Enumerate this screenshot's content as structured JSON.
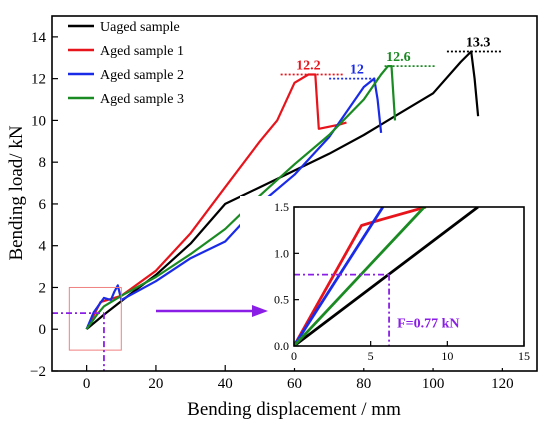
{
  "chart_data": [
    {
      "type": "line",
      "title": "",
      "xlabel": "Bending displacement / mm",
      "ylabel": "Bending load/ kN",
      "xlim": [
        -10,
        130
      ],
      "ylim": [
        -2,
        15
      ],
      "xticks": [
        0,
        20,
        40,
        60,
        80,
        100,
        120
      ],
      "yticks": [
        -2,
        0,
        2,
        4,
        6,
        8,
        10,
        12,
        14
      ],
      "xtick_labels": [
        "0",
        "20",
        "40",
        "60",
        "80",
        "100",
        "120"
      ],
      "ytick_labels": [
        "−2",
        "0",
        "2",
        "4",
        "6",
        "8",
        "10",
        "12",
        "14"
      ],
      "legend_position": "top-left",
      "series": [
        {
          "name": "Uaged sample",
          "color": "#000000",
          "x": [
            0,
            5,
            12,
            20,
            30,
            40,
            50,
            60,
            70,
            80,
            90,
            100,
            108,
            111,
            112,
            113
          ],
          "y": [
            0,
            0.7,
            1.6,
            2.6,
            4.1,
            6.0,
            6.8,
            7.6,
            8.4,
            9.3,
            10.3,
            11.3,
            12.8,
            13.3,
            12.0,
            10.2
          ]
        },
        {
          "name": "Aged sample 1",
          "color": "#e8141c",
          "x": [
            0,
            4,
            10,
            20,
            30,
            40,
            50,
            55,
            60,
            64,
            66,
            67,
            73,
            75
          ],
          "y": [
            0,
            1.3,
            1.6,
            2.8,
            4.6,
            6.8,
            9.0,
            10.0,
            11.8,
            12.2,
            12.2,
            9.6,
            9.8,
            9.9
          ]
        },
        {
          "name": "Aged sample 2",
          "color": "#1a2be8",
          "x": [
            0,
            2,
            5,
            7,
            8,
            9,
            10,
            20,
            30,
            40,
            50,
            60,
            70,
            80,
            83,
            84,
            85
          ],
          "y": [
            0,
            0.8,
            1.5,
            1.4,
            1.8,
            2.1,
            1.4,
            2.3,
            3.4,
            4.2,
            6.0,
            7.4,
            9.2,
            11.6,
            12.0,
            11.0,
            9.4
          ]
        },
        {
          "name": "Aged sample 3",
          "color": "#1a8a22",
          "x": [
            0,
            3,
            5,
            10,
            20,
            30,
            40,
            50,
            60,
            70,
            80,
            85,
            87,
            88,
            89
          ],
          "y": [
            0,
            0.7,
            1.1,
            1.6,
            2.5,
            3.6,
            4.8,
            6.4,
            7.9,
            9.3,
            11.0,
            12.2,
            12.6,
            12.6,
            10.0
          ]
        }
      ],
      "annotations": [
        {
          "text": "13.3",
          "color": "#000000",
          "x": 113,
          "y": 13.3,
          "line_x": [
            104,
            120
          ]
        },
        {
          "text": "12.2",
          "color": "#e8141c",
          "x": 64,
          "y": 12.2,
          "line_x": [
            56,
            74
          ]
        },
        {
          "text": "12",
          "color": "#1a2be8",
          "x": 78,
          "y": 12.0,
          "line_x": [
            70,
            84
          ]
        },
        {
          "text": "12.6",
          "color": "#1a8a22",
          "x": 90,
          "y": 12.6,
          "line_x": [
            86,
            101
          ]
        }
      ],
      "zoom_box": {
        "x": [
          -5,
          10
        ],
        "y": [
          -1,
          2
        ]
      },
      "reference": {
        "color": "#8a1ee6",
        "x": 5,
        "y": 0.77
      }
    },
    {
      "type": "line",
      "title": "",
      "xlim": [
        0,
        15
      ],
      "ylim": [
        0,
        1.5
      ],
      "xticks": [
        0,
        5,
        10,
        15
      ],
      "yticks": [
        0,
        0.5,
        1.0,
        1.5
      ],
      "xtick_labels": [
        "0",
        "5",
        "10",
        "15"
      ],
      "ytick_labels": [
        "0.0",
        "0.5",
        "1.0",
        "1.5"
      ],
      "series": [
        {
          "name": "Uaged sample",
          "color": "#000000",
          "x": [
            0,
            12
          ],
          "y": [
            0,
            1.5
          ]
        },
        {
          "name": "Aged sample 1",
          "color": "#e8141c",
          "x": [
            0,
            4.4,
            5.6,
            8.6
          ],
          "y": [
            0,
            1.3,
            1.36,
            1.5
          ]
        },
        {
          "name": "Aged sample 2",
          "color": "#1a2be8",
          "x": [
            0,
            5.8
          ],
          "y": [
            0,
            1.5
          ]
        },
        {
          "name": "Aged sample 3",
          "color": "#1a8a22",
          "x": [
            0,
            8.5
          ],
          "y": [
            0,
            1.5
          ]
        }
      ],
      "reference": {
        "color": "#8a1ee6",
        "x": 6.2,
        "y": 0.77,
        "label": "F=0.77 kN"
      }
    }
  ]
}
